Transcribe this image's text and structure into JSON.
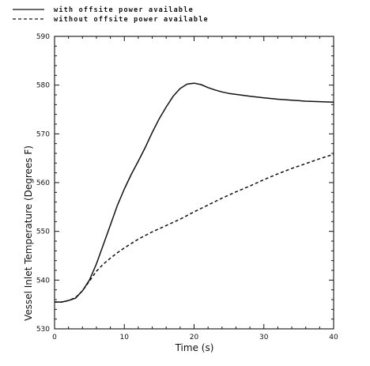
{
  "chart_data": {
    "type": "line",
    "xlabel": "Time  (s)",
    "ylabel": "Vessel Inlet Temperature (Degrees F)",
    "xlim": [
      0,
      40
    ],
    "ylim": [
      530,
      590
    ],
    "xticks": [
      0,
      10,
      20,
      30,
      40
    ],
    "yticks": [
      530,
      540,
      550,
      560,
      570,
      580,
      590
    ],
    "grid": false,
    "legend_position": "top-left, above plot",
    "series": [
      {
        "name": "with offsite power available",
        "style": "solid",
        "color": "#111111",
        "x": [
          0,
          1,
          2,
          3,
          4,
          5,
          6,
          7,
          8,
          9,
          10,
          11,
          12,
          13,
          14,
          15,
          16,
          17,
          18,
          19,
          20,
          21,
          22,
          23,
          24,
          25,
          26,
          28,
          30,
          32,
          34,
          36,
          38,
          40
        ],
        "y": [
          535.5,
          535.5,
          535.8,
          536.3,
          537.8,
          540.0,
          543.3,
          547.3,
          551.3,
          555.3,
          558.7,
          561.7,
          564.4,
          567.2,
          570.3,
          573.1,
          575.5,
          577.7,
          579.3,
          580.2,
          580.4,
          580.1,
          579.5,
          579.0,
          578.6,
          578.3,
          578.1,
          577.7,
          577.4,
          577.1,
          576.9,
          576.7,
          576.6,
          576.5
        ]
      },
      {
        "name": "without offsite power available",
        "style": "dashed",
        "color": "#111111",
        "x": [
          0,
          1,
          2,
          3,
          4,
          5,
          6,
          7,
          8,
          9,
          10,
          12,
          14,
          16,
          18,
          20,
          22,
          24,
          26,
          28,
          30,
          32,
          34,
          36,
          38,
          40
        ],
        "y": [
          535.5,
          535.5,
          535.8,
          536.4,
          537.8,
          539.8,
          541.8,
          543.3,
          544.5,
          545.6,
          546.6,
          548.4,
          549.9,
          551.2,
          552.5,
          554.0,
          555.4,
          556.8,
          558.1,
          559.3,
          560.6,
          561.8,
          562.9,
          563.9,
          564.9,
          565.8
        ]
      }
    ]
  }
}
